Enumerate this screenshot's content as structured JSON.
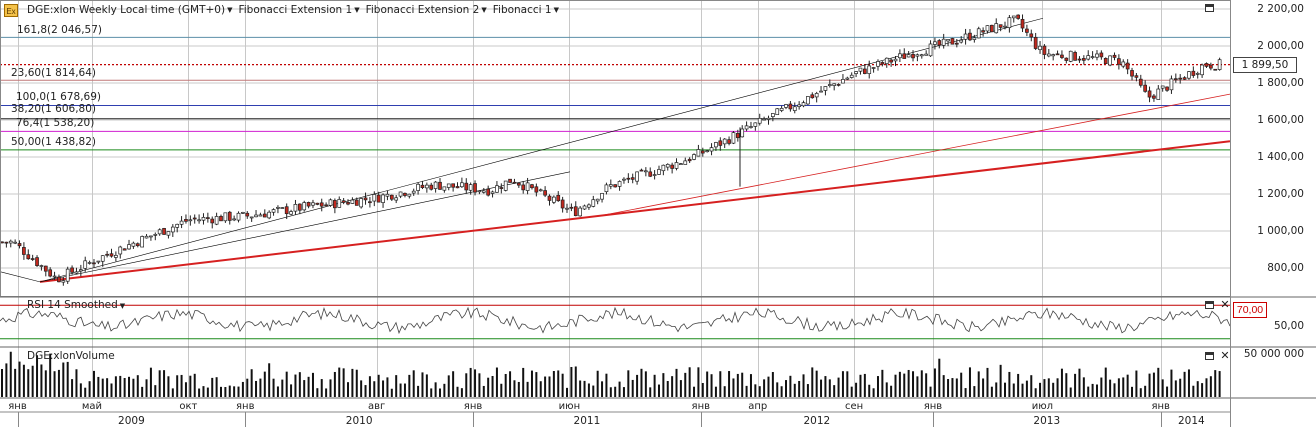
{
  "toolbar": {
    "symbol_title": "DGE:xlon Weekly Local time (GMT+0)",
    "studies": [
      "Fibonacci Extension 1",
      "Fibonacci Extension 2",
      "Fibonacci 1"
    ]
  },
  "fib_levels": [
    {
      "label": "161,8(2 046,57)",
      "value": 2046.57,
      "color": "#5b8fa8"
    },
    {
      "label": "23,60(1 814,64)",
      "value": 1814.64,
      "color": "#c07878"
    },
    {
      "label": "100,0(1 678,69)",
      "value": 1678.69,
      "color": "#2f3fb0"
    },
    {
      "label": "38,20(1 606,80)",
      "value": 1606.8,
      "color": "#222222"
    },
    {
      "label": "76,4(1 538,20)",
      "value": 1538.2,
      "color": "#d020d0"
    },
    {
      "label": "50,00(1 438,82)",
      "value": 1438.82,
      "color": "#1a8a1a"
    }
  ],
  "price_axis": {
    "ticks": [
      "2 200,00",
      "2 000,00",
      "1 800,00",
      "1 600,00",
      "1 400,00",
      "1 200,00",
      "1 000,00",
      "800,00"
    ],
    "last_price": "1 899,50"
  },
  "rsi": {
    "title": "RSI 14 Smoothed",
    "overbought_label": "70,00",
    "mid_label": "50,00"
  },
  "volume": {
    "title": "DGE:xlonVolume",
    "scale_label": "50 000 000"
  },
  "time_axis": {
    "months": [
      "янв",
      "май",
      "окт",
      "янв",
      "авг",
      "янв",
      "июн",
      "янв",
      "апр",
      "сен",
      "янв",
      "июл",
      "янв"
    ],
    "years": [
      "2009",
      "2010",
      "2011",
      "2012",
      "2013",
      "2014"
    ]
  },
  "colors": {
    "up_candle": "#ffffff",
    "down_candle": "#c0281e",
    "support_line": "#d62020",
    "channel_line": "#000000",
    "grid": "#c8c8c8"
  },
  "chart_data": {
    "type": "candlestick",
    "title": "DGE:xlon Weekly",
    "ylim": [
      620,
      2230
    ],
    "price_path": [
      {
        "x": "2008-12-29",
        "close": 940
      },
      {
        "x": "2009-03-09",
        "close": 740
      },
      {
        "x": "2009-06-01",
        "close": 880
      },
      {
        "x": "2009-10-05",
        "close": 1060
      },
      {
        "x": "2010-01-04",
        "close": 1080
      },
      {
        "x": "2010-04-12",
        "close": 1130
      },
      {
        "x": "2010-08-02",
        "close": 1180
      },
      {
        "x": "2010-11-01",
        "close": 1250
      },
      {
        "x": "2011-01-31",
        "close": 1220
      },
      {
        "x": "2011-03-07",
        "close": 1280
      },
      {
        "x": "2011-06-13",
        "close": 1100
      },
      {
        "x": "2011-08-08",
        "close": 1240
      },
      {
        "x": "2011-12-05",
        "close": 1380
      },
      {
        "x": "2012-01-02",
        "close": 1420
      },
      {
        "x": "2012-04-02",
        "close": 1580
      },
      {
        "x": "2012-09-03",
        "close": 1850
      },
      {
        "x": "2012-12-03",
        "close": 1960
      },
      {
        "x": "2013-02-04",
        "close": 2020
      },
      {
        "x": "2013-05-20",
        "close": 2140
      },
      {
        "x": "2013-07-01",
        "close": 1960
      },
      {
        "x": "2013-11-04",
        "close": 1920
      },
      {
        "x": "2013-12-16",
        "close": 1720
      },
      {
        "x": "2014-03-17",
        "close": 1899.5
      }
    ],
    "rsi": {
      "name": "RSI 14 Smoothed",
      "overbought": 70,
      "mid": 50
    },
    "volume_scale": 50000000
  }
}
